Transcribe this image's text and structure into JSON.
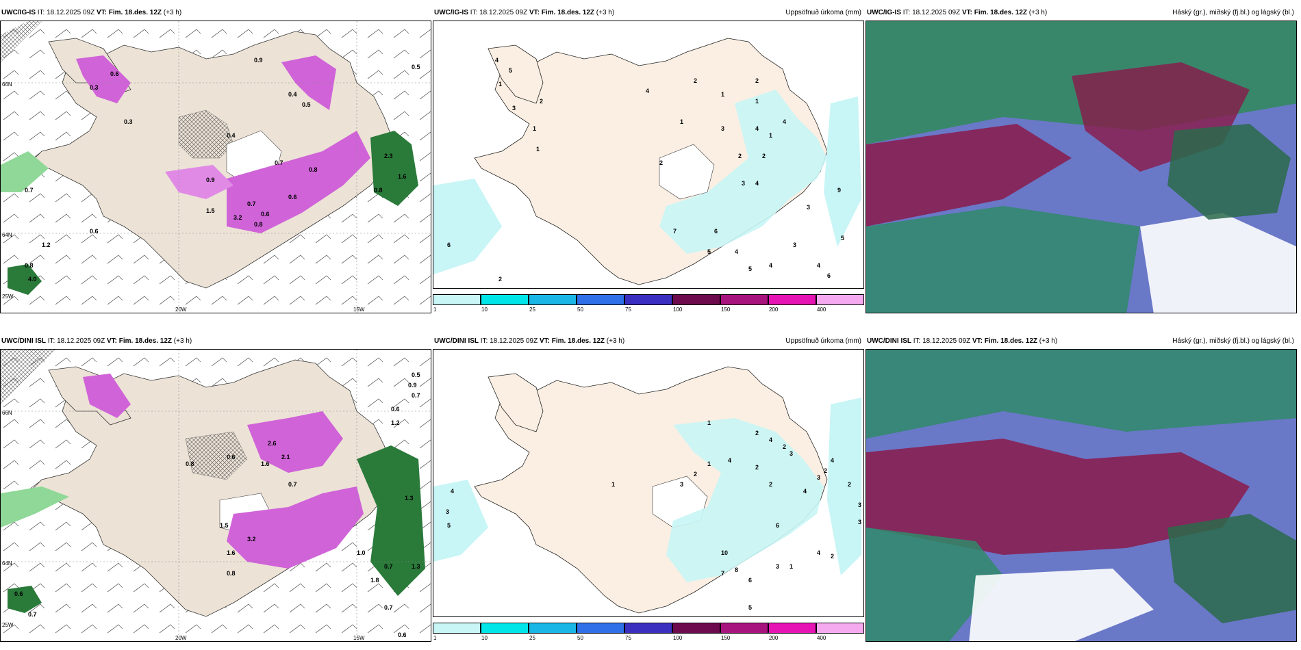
{
  "panels": [
    {
      "model": "UWC/IG-IS",
      "it": "18.12.2025 09Z",
      "vt": "Fim. 18.des. 12Z",
      "lead": "(+3 h)",
      "right_title": ""
    },
    {
      "model": "UWC/IG-IS",
      "it": "18.12.2025 09Z",
      "vt": "Fim. 18.des. 12Z",
      "lead": "(+3 h)",
      "right_title": "Uppsöfnuð úrkoma (mm)"
    },
    {
      "model": "UWC/IG-IS",
      "it": "18.12.2025 09Z",
      "vt": "Fim. 18.des. 12Z",
      "lead": "(+3 h)",
      "right_title": "Háský (gr.), miðský (fj.bl.) og lágský (bl.)"
    },
    {
      "model": "UWC/DINI ISL",
      "it": "18.12.2025 09Z",
      "vt": "Fim. 18.des. 12Z",
      "lead": "(+3 h)",
      "right_title": ""
    },
    {
      "model": "UWC/DINI ISL",
      "it": "18.12.2025 09Z",
      "vt": "Fim. 18.des. 12Z",
      "lead": "(+3 h)",
      "right_title": "Uppsöfnuð úrkoma (mm)"
    },
    {
      "model": "UWC/DINI ISL",
      "it": "18.12.2025 09Z",
      "vt": "Fim. 18.des. 12Z",
      "lead": "(+3 h)",
      "right_title": "Háský (gr.), miðský (fj.bl.) og lágský (bl.)"
    }
  ],
  "labels": {
    "it_prefix": "IT:",
    "vt_prefix": "VT:"
  },
  "axes": {
    "lat66": "66N",
    "lat64": "64N",
    "lon25": "25W",
    "lon20": "20W",
    "lon15": "15W"
  },
  "colorbar": {
    "colors": [
      "#c8f5f5",
      "#00e5e8",
      "#19b6e6",
      "#2f6fe8",
      "#3b2fc0",
      "#6e0a4e",
      "#a8147e",
      "#e614b4",
      "#f5aaf0"
    ],
    "ticks": [
      "1",
      "10",
      "25",
      "50",
      "75",
      "100",
      "150",
      "200",
      "400"
    ]
  },
  "precip_top": [
    {
      "v": "0.9"
    },
    {
      "v": "0.6"
    },
    {
      "v": "0.3"
    },
    {
      "v": "0.4"
    },
    {
      "v": "0.5"
    },
    {
      "v": "0.3"
    },
    {
      "v": "0.4"
    },
    {
      "v": "0.9"
    },
    {
      "v": "0.7"
    },
    {
      "v": "0.6"
    },
    {
      "v": "0.7"
    },
    {
      "v": "0.8"
    },
    {
      "v": "0.6"
    },
    {
      "v": "0.8"
    },
    {
      "v": "1.5"
    },
    {
      "v": "3.2"
    },
    {
      "v": "2.3"
    },
    {
      "v": "1.6"
    },
    {
      "v": "0.8"
    },
    {
      "v": "4.0"
    },
    {
      "v": "0.8"
    },
    {
      "v": "1.2"
    },
    {
      "v": "0.5"
    },
    {
      "v": "0.7"
    },
    {
      "v": "0.6"
    }
  ],
  "precip_bottom": [
    {
      "v": "0.5"
    },
    {
      "v": "0.9"
    },
    {
      "v": "0.7"
    },
    {
      "v": "0.6"
    },
    {
      "v": "1.2"
    },
    {
      "v": "2.6"
    },
    {
      "v": "2.1"
    },
    {
      "v": "1.6"
    },
    {
      "v": "0.7"
    },
    {
      "v": "0.8"
    },
    {
      "v": "0.6"
    },
    {
      "v": "1.5"
    },
    {
      "v": "3.2"
    },
    {
      "v": "1.6"
    },
    {
      "v": "0.8"
    },
    {
      "v": "1.3"
    },
    {
      "v": "0.7"
    },
    {
      "v": "1.0"
    },
    {
      "v": "0.6"
    },
    {
      "v": "0.7"
    },
    {
      "v": "1.8"
    },
    {
      "v": "1.3"
    },
    {
      "v": "0.7"
    },
    {
      "v": "0.6"
    }
  ],
  "acc_top": [
    {
      "v": "4"
    },
    {
      "v": "5"
    },
    {
      "v": "1"
    },
    {
      "v": "3"
    },
    {
      "v": "2"
    },
    {
      "v": "1"
    },
    {
      "v": "4"
    },
    {
      "v": "2"
    },
    {
      "v": "1"
    },
    {
      "v": "2"
    },
    {
      "v": "1"
    },
    {
      "v": "4"
    },
    {
      "v": "2"
    },
    {
      "v": "3"
    },
    {
      "v": "4"
    },
    {
      "v": "6"
    },
    {
      "v": "7"
    },
    {
      "v": "5"
    },
    {
      "v": "4"
    },
    {
      "v": "5"
    },
    {
      "v": "4"
    },
    {
      "v": "3"
    },
    {
      "v": "4"
    },
    {
      "v": "9"
    },
    {
      "v": "5"
    },
    {
      "v": "3"
    },
    {
      "v": "6"
    },
    {
      "v": "2"
    },
    {
      "v": "6"
    },
    {
      "v": "4"
    },
    {
      "v": "1"
    },
    {
      "v": "2"
    },
    {
      "v": "3"
    },
    {
      "v": "1"
    },
    {
      "v": "2"
    },
    {
      "v": "1"
    }
  ],
  "acc_bottom": [
    {
      "v": "1"
    },
    {
      "v": "2"
    },
    {
      "v": "4"
    },
    {
      "v": "2"
    },
    {
      "v": "3"
    },
    {
      "v": "4"
    },
    {
      "v": "2"
    },
    {
      "v": "1"
    },
    {
      "v": "4"
    },
    {
      "v": "3"
    },
    {
      "v": "5"
    },
    {
      "v": "3"
    },
    {
      "v": "2"
    },
    {
      "v": "4"
    },
    {
      "v": "6"
    },
    {
      "v": "10"
    },
    {
      "v": "8"
    },
    {
      "v": "7"
    },
    {
      "v": "6"
    },
    {
      "v": "5"
    },
    {
      "v": "3"
    },
    {
      "v": "1"
    },
    {
      "v": "4"
    },
    {
      "v": "2"
    },
    {
      "v": "3"
    },
    {
      "v": "3"
    },
    {
      "v": "2"
    },
    {
      "v": "2"
    },
    {
      "v": "4"
    },
    {
      "v": "1"
    },
    {
      "v": "2"
    },
    {
      "v": "3"
    }
  ]
}
